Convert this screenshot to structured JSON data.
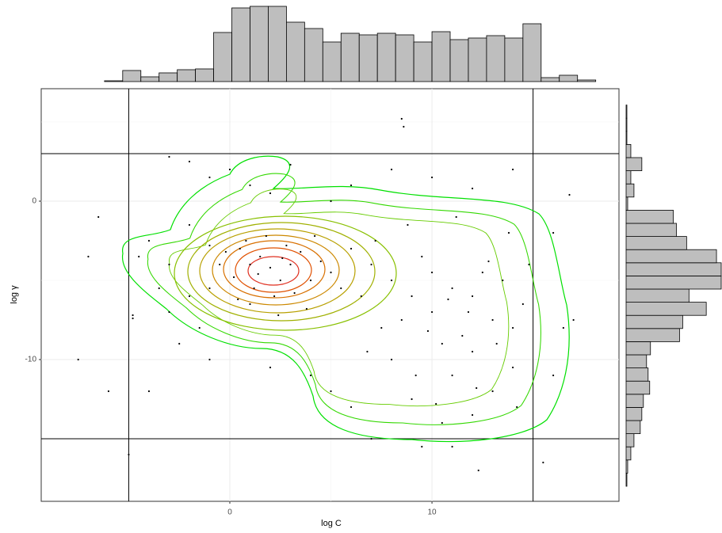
{
  "chart_data": [
    {
      "type": "scatter",
      "x_label": "log C",
      "y_label": "log γ",
      "color": "#000000",
      "grid": true,
      "xlim": [
        -9.33,
        19.25
      ],
      "ylim": [
        -18.95,
        7.1
      ],
      "xticks": [
        0,
        10
      ],
      "yticks": [
        0,
        -10
      ],
      "x_minor": [
        -5,
        5,
        15
      ],
      "y_minor": [
        5,
        -5,
        -15
      ],
      "vlines": [
        -5,
        15
      ],
      "hlines": [
        3,
        -15
      ],
      "x": [
        0.5,
        1,
        1.5,
        2,
        2.5,
        3,
        1.2,
        0.8,
        3.5,
        4,
        2.2,
        1.8,
        0.2,
        3.2,
        4.5,
        5,
        2.8,
        1,
        -0.5,
        -1,
        3.8,
        5.5,
        2.6,
        1.4,
        -0.2,
        0.4,
        2.4,
        4.2,
        6,
        6.5,
        7,
        8,
        9,
        10,
        11,
        12,
        13,
        14,
        12.5,
        11.5,
        10.5,
        9.5,
        8.5,
        13.5,
        14.5,
        7.5,
        10,
        12,
        11,
        13,
        9,
        12,
        10.5,
        14,
        8,
        11.8,
        13.2,
        9.8,
        10.8,
        12.8,
        14.8,
        7.2,
        8.8,
        11.2,
        13.8,
        6.8,
        9.2,
        12.2,
        10.2,
        14.2,
        -4,
        -3,
        -2,
        -1.5,
        -3.5,
        -4.5,
        -2.5,
        -1,
        -3,
        -4.8,
        -4.8,
        -2,
        -1,
        -2,
        0,
        1,
        3,
        5,
        6,
        8,
        10,
        12,
        14,
        2,
        -1,
        -3,
        8.5,
        8.6,
        4,
        5,
        -4,
        -6,
        2,
        6,
        16,
        16.5,
        17,
        15.5,
        12.3,
        11,
        16,
        16.8,
        -5,
        -7.5,
        -6.5,
        -7,
        7,
        9.5
      ],
      "values": [
        -3,
        -4,
        -3.5,
        -4.2,
        -5,
        -4,
        -5.5,
        -2.5,
        -3.2,
        -5,
        -6,
        -2.2,
        -4.8,
        -5.8,
        -3.8,
        -4.5,
        -2.8,
        -6.5,
        -4,
        -5.5,
        -6.8,
        -5.5,
        -3.6,
        -4.6,
        -3.2,
        -6.2,
        -7.2,
        -2.2,
        -3,
        -6,
        -4,
        -5,
        -6,
        -7,
        -5.5,
        -6,
        -7.5,
        -8,
        -4.5,
        -8.5,
        -9,
        -3.5,
        -7.5,
        -5,
        -6.5,
        -8,
        -4.5,
        -9.5,
        -11,
        -12,
        -12.5,
        -13.5,
        -14,
        -10.5,
        -10,
        -7,
        -9,
        -8.2,
        -6.2,
        -3.8,
        -4,
        -2.5,
        -1.5,
        -1,
        -2,
        -9.5,
        -11,
        -11.8,
        -12.8,
        -13,
        -2.5,
        -4,
        -6,
        -8,
        -5.5,
        -3.5,
        -9,
        -10,
        -7,
        -7.2,
        -7.4,
        -1.5,
        -2.8,
        2.5,
        2,
        1,
        2.3,
        0,
        1,
        2,
        1.5,
        0.8,
        2,
        0.5,
        1.5,
        2.8,
        5.2,
        4.7,
        -11,
        -12,
        -12,
        -12,
        -10.5,
        -13,
        -11,
        -8,
        -7.5,
        -16.5,
        -17,
        -15.5,
        -2,
        0.4,
        -16,
        -10,
        -1,
        -3.5,
        -15,
        -15.5
      ]
    },
    {
      "type": "histogram",
      "orientation": "vertical",
      "color": "#bebebe",
      "bins": [
        -8,
        -7.1,
        -6.2,
        -5.3,
        -4.4,
        -3.5,
        -2.6,
        -1.7,
        -0.8,
        0.1,
        1,
        1.9,
        2.8,
        3.7,
        4.6,
        5.5,
        6.4,
        7.3,
        8.2,
        9.1,
        10,
        10.9,
        11.8,
        12.7,
        13.6,
        14.5,
        15.4,
        16.3,
        17.2,
        18.1
      ],
      "counts": [
        0,
        0,
        1,
        14,
        6,
        11,
        15,
        16,
        62,
        93,
        95,
        95,
        75,
        67,
        50,
        61,
        59,
        61,
        59,
        50,
        63,
        53,
        55,
        58,
        55,
        73,
        5,
        8,
        2
      ]
    },
    {
      "type": "histogram",
      "orientation": "horizontal",
      "color": "#bebebe",
      "bins": [
        -18,
        -17.17,
        -16.34,
        -15.51,
        -14.68,
        -13.85,
        -13.02,
        -12.19,
        -11.36,
        -10.53,
        -9.7,
        -8.87,
        -8.04,
        -7.21,
        -6.38,
        -5.55,
        -4.72,
        -3.89,
        -3.06,
        -2.23,
        -1.4,
        -0.57,
        0.26,
        1.09,
        1.92,
        2.75,
        3.58,
        4.41,
        5.24,
        6.07
      ],
      "counts": [
        1,
        2,
        6,
        10,
        18,
        20,
        22,
        30,
        28,
        26,
        31,
        68,
        72,
        102,
        80,
        121,
        121,
        115,
        77,
        64,
        60,
        2,
        10,
        6,
        20,
        6,
        1,
        1,
        1
      ]
    }
  ]
}
